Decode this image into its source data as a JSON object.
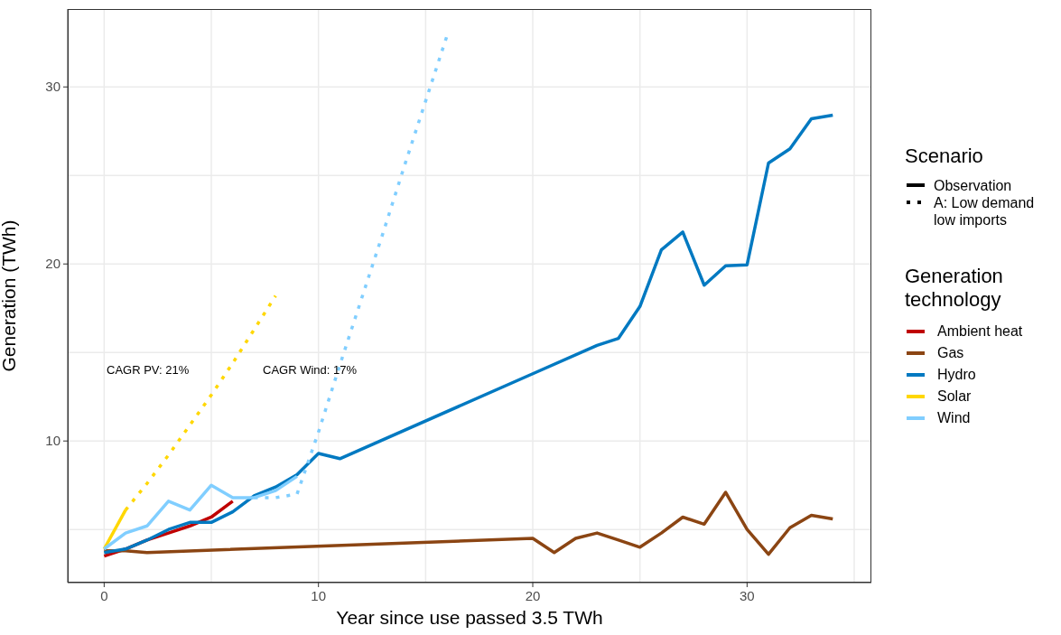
{
  "chart_data": {
    "type": "line",
    "xlabel": "Year since use passed 3.5 TWh",
    "ylabel": "Generation (TWh)",
    "legend_title": [
      "Scenario",
      "Generation technology"
    ],
    "xlim": [
      -1.7,
      35.8
    ],
    "xticks": [
      0,
      {
        "value": 5,
        "label": null
      },
      10,
      {
        "value": 15,
        "label": null
      },
      20,
      {
        "value": 25,
        "label": null
      },
      30,
      {
        "value": 35,
        "label": null
      }
    ],
    "ylim": [
      2.0,
      34.4
    ],
    "yticks": [
      {
        "value": 5,
        "label": null
      },
      10,
      {
        "value": 15,
        "label": null
      },
      20,
      {
        "value": 25,
        "label": null
      },
      30
    ],
    "grid": true,
    "legend": "right",
    "annotations": [
      "CAGR PV: 21%",
      "CAGR Wind: 17%",
      "Observation",
      "A: Low demand low imports"
    ],
    "series": [
      {
        "name": "Ambient heat",
        "color": "#bf0000",
        "line_style": "solid",
        "x": [
          0,
          1,
          2,
          3,
          4,
          5,
          6
        ],
        "values": [
          3.5,
          3.9,
          4.4,
          4.8,
          5.2,
          5.7,
          6.6
        ]
      },
      {
        "name": "Gas",
        "color": "#8b4513",
        "line_style": "solid",
        "x": [
          0,
          1,
          2,
          20,
          21,
          22,
          23,
          24,
          25,
          26,
          27,
          28,
          29,
          30,
          31,
          32,
          33,
          34
        ],
        "values": [
          3.8,
          3.8,
          3.7,
          4.5,
          3.7,
          4.5,
          4.8,
          4.4,
          4.0,
          4.8,
          5.7,
          5.3,
          7.1,
          5.0,
          3.6,
          5.1,
          5.8,
          5.6
        ]
      },
      {
        "name": "Hydro",
        "color": "#0079c1",
        "line_style": "solid",
        "x": [
          0,
          1,
          2,
          3,
          4,
          5,
          6,
          7,
          8,
          9,
          10,
          11,
          20,
          23,
          24,
          25,
          26,
          27,
          28,
          29,
          30,
          31,
          32,
          33,
          34
        ],
        "values": [
          3.7,
          3.9,
          4.4,
          5.0,
          5.4,
          5.4,
          6.0,
          6.9,
          7.4,
          8.1,
          9.3,
          9.0,
          13.8,
          15.4,
          15.8,
          17.6,
          20.8,
          21.8,
          18.8,
          19.9,
          19.95,
          25.7,
          26.5,
          28.2,
          28.4
        ]
      },
      {
        "name": "Solar",
        "color": "#ffd700",
        "line_style": "solid",
        "x": [
          0,
          1
        ],
        "values": [
          3.9,
          6.1
        ]
      },
      {
        "name": "Wind",
        "color": "#80ceff",
        "line_style": "solid",
        "x": [
          0,
          1,
          2,
          3,
          4,
          5,
          6,
          7,
          8,
          9
        ],
        "values": [
          3.9,
          4.8,
          5.2,
          6.6,
          6.1,
          7.5,
          6.8,
          6.8,
          7.2,
          8.0
        ]
      },
      {
        "color": "#ffd700",
        "line_style": "dotted",
        "x": [
          1,
          2,
          3,
          4,
          5,
          6,
          7,
          8
        ],
        "values": [
          6.1,
          7.6,
          9.2,
          10.9,
          12.6,
          14.4,
          16.3,
          18.2
        ]
      },
      {
        "color": "#80ceff",
        "line_style": "dotted",
        "x": [
          7,
          8,
          9,
          10,
          11,
          12,
          13,
          14,
          15,
          16
        ],
        "values": [
          6.8,
          6.8,
          7.0,
          10.5,
          14.3,
          18.0,
          21.7,
          25.5,
          29.2,
          32.9
        ]
      }
    ]
  }
}
